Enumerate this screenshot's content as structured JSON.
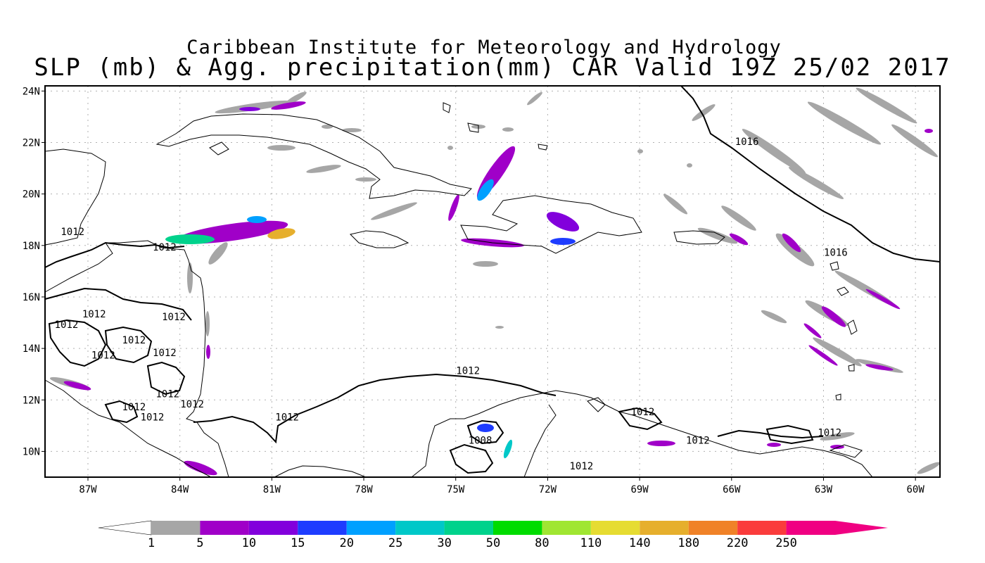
{
  "title": {
    "line1": "Caribbean Institute for Meteorology and Hydrology",
    "line2": "SLP (mb) & Agg. precipitation(mm) CAR Valid 19Z 25/02 2017"
  },
  "axes": {
    "lat_ticks": [
      {
        "label": "24N",
        "value": 24
      },
      {
        "label": "22N",
        "value": 22
      },
      {
        "label": "20N",
        "value": 20
      },
      {
        "label": "18N",
        "value": 18
      },
      {
        "label": "16N",
        "value": 16
      },
      {
        "label": "14N",
        "value": 14
      },
      {
        "label": "12N",
        "value": 12
      },
      {
        "label": "10N",
        "value": 10
      }
    ],
    "lon_ticks": [
      {
        "label": "87W",
        "value": -87
      },
      {
        "label": "84W",
        "value": -84
      },
      {
        "label": "81W",
        "value": -81
      },
      {
        "label": "78W",
        "value": -78
      },
      {
        "label": "75W",
        "value": -75
      },
      {
        "label": "72W",
        "value": -72
      },
      {
        "label": "69W",
        "value": -69
      },
      {
        "label": "66W",
        "value": -66
      },
      {
        "label": "63W",
        "value": -63
      },
      {
        "label": "60W",
        "value": -60
      }
    ],
    "lat_range": [
      9,
      24.2
    ],
    "lon_range": [
      -88.4,
      -59.2
    ],
    "grid": "dotted"
  },
  "contour_labels": [
    {
      "text": "1016",
      "lon": -65.5,
      "lat": 21.9
    },
    {
      "text": "1016",
      "lon": -62.6,
      "lat": 17.6
    },
    {
      "text": "1012",
      "lon": -87.5,
      "lat": 18.4
    },
    {
      "text": "1012",
      "lon": -84.5,
      "lat": 17.8
    },
    {
      "text": "1012",
      "lon": -86.8,
      "lat": 15.2
    },
    {
      "text": "1012",
      "lon": -84.2,
      "lat": 15.1
    },
    {
      "text": "1012",
      "lon": -87.7,
      "lat": 14.8
    },
    {
      "text": "1012",
      "lon": -85.5,
      "lat": 14.2
    },
    {
      "text": "1012",
      "lon": -86.5,
      "lat": 13.6
    },
    {
      "text": "1012",
      "lon": -84.5,
      "lat": 13.7
    },
    {
      "text": "1012",
      "lon": -84.4,
      "lat": 12.1
    },
    {
      "text": "1012",
      "lon": -83.6,
      "lat": 11.7
    },
    {
      "text": "1012",
      "lon": -85.5,
      "lat": 11.6
    },
    {
      "text": "1012",
      "lon": -84.9,
      "lat": 11.2
    },
    {
      "text": "1012",
      "lon": -80.5,
      "lat": 11.2
    },
    {
      "text": "1012",
      "lon": -74.6,
      "lat": 13.0
    },
    {
      "text": "1012",
      "lon": -68.9,
      "lat": 11.4
    },
    {
      "text": "1012",
      "lon": -67.1,
      "lat": 10.3
    },
    {
      "text": "1012",
      "lon": -62.8,
      "lat": 10.6
    },
    {
      "text": "1012",
      "lon": -70.9,
      "lat": 9.3
    },
    {
      "text": "1008",
      "lon": -74.2,
      "lat": 10.3
    }
  ],
  "colorbar": {
    "labels": [
      "1",
      "5",
      "10",
      "15",
      "20",
      "25",
      "30",
      "50",
      "80",
      "110",
      "140",
      "180",
      "220",
      "250"
    ],
    "colors": [
      "#a6a6a6",
      "#a000c8",
      "#8200dc",
      "#1e3cff",
      "#00a0ff",
      "#00c8c8",
      "#00d28c",
      "#00dc00",
      "#a0e632",
      "#e6dc32",
      "#e6af2d",
      "#f08228",
      "#fa3c3c",
      "#f00082"
    ],
    "low_end_color": "#ffffff",
    "high_end_color": "#f00082"
  }
}
